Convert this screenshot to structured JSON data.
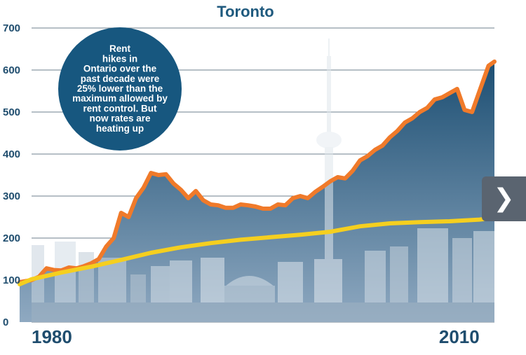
{
  "colors": {
    "title": "#1f5a7e",
    "axis_text": "#1f4d6e",
    "rent_line": "#f07a2a",
    "control_line": "#f5cf1f",
    "area_top": "#1d4f73",
    "area_bottom": "#8fa9c1",
    "bubble": "#17577f",
    "grid": "#6e7f8e",
    "nav_button": "#5a6470"
  },
  "nav": {
    "next_icon": "chevron-right-icon",
    "next_glyph": "❯"
  },
  "chart_data": {
    "type": "line",
    "title": "Toronto",
    "xlabel": "",
    "ylabel": "",
    "ylim": [
      0,
      700
    ],
    "yticks": [
      "0",
      "100",
      "200",
      "300",
      "400",
      "500",
      "600",
      "700"
    ],
    "xlim": [
      1980,
      2011
    ],
    "xtick_labels": [
      {
        "x": 1980,
        "label": "1980"
      },
      {
        "x": 2010,
        "label": "2010"
      }
    ],
    "grid": true,
    "annotation": {
      "lines": [
        "Rent",
        "hikes in",
        "Ontario over the",
        "past decade were",
        "25% lower than the",
        "maximum allowed by",
        "rent control. But",
        "now rates are",
        "heating up"
      ]
    },
    "series": [
      {
        "key": "rent",
        "style": "area+line",
        "x": [
          1979.2,
          1980.0,
          1980.5,
          1981.0,
          1981.5,
          1982.0,
          1982.5,
          1983.0,
          1983.5,
          1984.0,
          1984.5,
          1985.0,
          1985.5,
          1986.0,
          1986.5,
          1987.0,
          1987.5,
          1988.0,
          1988.5,
          1989.0,
          1989.5,
          1990.0,
          1990.5,
          1991.0,
          1991.5,
          1992.0,
          1992.5,
          1993.0,
          1993.5,
          1994.0,
          1994.5,
          1995.0,
          1995.5,
          1996.0,
          1996.5,
          1997.0,
          1997.5,
          1998.0,
          1998.5,
          1999.0,
          1999.5,
          2000.0,
          2000.5,
          2001.0,
          2001.5,
          2002.0,
          2002.5,
          2003.0,
          2003.5,
          2004.0,
          2004.5,
          2005.0,
          2005.5,
          2006.0,
          2006.5,
          2007.0,
          2007.5,
          2008.0,
          2008.5,
          2009.0,
          2009.5,
          2010.0,
          2010.3,
          2010.6,
          2011.0
        ],
        "y": [
          95,
          100,
          108,
          128,
          124,
          123,
          130,
          128,
          133,
          140,
          150,
          180,
          200,
          260,
          250,
          295,
          320,
          355,
          350,
          352,
          330,
          315,
          295,
          312,
          290,
          280,
          278,
          272,
          272,
          280,
          278,
          275,
          270,
          270,
          280,
          278,
          295,
          300,
          295,
          310,
          322,
          335,
          345,
          342,
          360,
          385,
          395,
          410,
          420,
          440,
          455,
          475,
          485,
          500,
          510,
          530,
          535,
          545,
          555,
          505,
          500,
          550,
          580,
          610,
          620
        ]
      },
      {
        "key": "control",
        "style": "line",
        "x": [
          1979.2,
          1980,
          1982,
          1984,
          1986,
          1988,
          1990,
          1992,
          1994,
          1996,
          1998,
          2000,
          2002,
          2004,
          2006,
          2008,
          2010,
          2011
        ],
        "y": [
          90,
          102,
          118,
          132,
          148,
          165,
          178,
          188,
          196,
          202,
          208,
          215,
          228,
          235,
          238,
          240,
          244,
          248
        ]
      }
    ]
  }
}
